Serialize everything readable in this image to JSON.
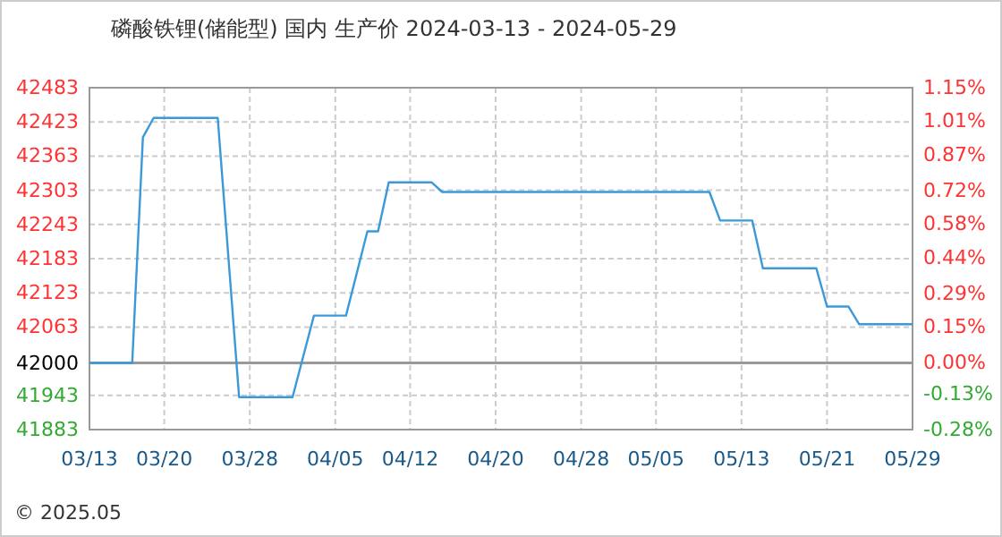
{
  "chart_data": {
    "type": "line",
    "title": "磷酸铁锂(储能型) 国内 生产价 2024-03-13 - 2024-05-29",
    "x": [
      "2024-03-13",
      "2024-03-17",
      "2024-03-18",
      "2024-03-19",
      "2024-03-25",
      "2024-03-27",
      "2024-04-01",
      "2024-04-03",
      "2024-04-06",
      "2024-04-08",
      "2024-04-09",
      "2024-04-10",
      "2024-04-14",
      "2024-04-15",
      "2024-05-10",
      "2024-05-11",
      "2024-05-14",
      "2024-05-15",
      "2024-05-20",
      "2024-05-21",
      "2024-05-23",
      "2024-05-24",
      "2024-05-29"
    ],
    "series": [
      {
        "color": "#3a9ad9",
        "values": [
          42000,
          42000,
          42396,
          42430,
          42430,
          41940,
          41940,
          42083,
          42083,
          42231,
          42231,
          42317,
          42317,
          42300,
          42300,
          42250,
          42250,
          42166,
          42166,
          42099,
          42099,
          42068,
          42068
        ]
      }
    ],
    "xlim": [
      "2024-03-13",
      "2024-05-29"
    ],
    "xticks": [
      {
        "value": "2024-03-13",
        "label": "03/13"
      },
      {
        "value": "2024-03-20",
        "label": "03/20"
      },
      {
        "value": "2024-03-28",
        "label": "03/28"
      },
      {
        "value": "2024-04-05",
        "label": "04/05"
      },
      {
        "value": "2024-04-12",
        "label": "04/12"
      },
      {
        "value": "2024-04-20",
        "label": "04/20"
      },
      {
        "value": "2024-04-28",
        "label": "04/28"
      },
      {
        "value": "2024-05-05",
        "label": "05/05"
      },
      {
        "value": "2024-05-13",
        "label": "05/13"
      },
      {
        "value": "2024-05-21",
        "label": "05/21"
      },
      {
        "value": "2024-05-29",
        "label": "05/29"
      }
    ],
    "ylim": [
      41883,
      42483
    ],
    "yticks": [
      41883,
      41943,
      42000,
      42063,
      42123,
      42183,
      42243,
      42303,
      42363,
      42423,
      42483
    ],
    "y2lim": [
      -0.28,
      1.15
    ],
    "y2ticks": [
      {
        "value": -0.28,
        "label": "-0.28%"
      },
      {
        "value": -0.13,
        "label": "-0.13%"
      },
      {
        "value": 0,
        "label": "0.00%"
      },
      {
        "value": 0.15,
        "label": "0.15%"
      },
      {
        "value": 0.29,
        "label": "0.29%"
      },
      {
        "value": 0.44,
        "label": "0.44%"
      },
      {
        "value": 0.58,
        "label": "0.58%"
      },
      {
        "value": 0.72,
        "label": "0.72%"
      },
      {
        "value": 0.87,
        "label": "0.87%"
      },
      {
        "value": 1.01,
        "label": "1.01%"
      },
      {
        "value": 1.15,
        "label": "1.15%"
      }
    ],
    "ref_lines": [
      {
        "axis": "y",
        "value": 42000,
        "color": "#999999"
      }
    ],
    "grid": true,
    "annotations": [
      "© 2025.05"
    ]
  }
}
